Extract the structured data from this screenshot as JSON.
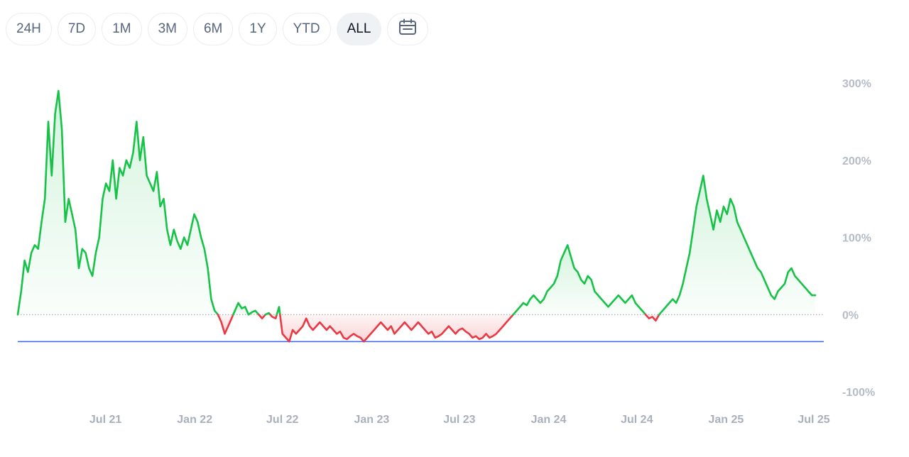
{
  "range_selector": {
    "options": [
      "24H",
      "7D",
      "1M",
      "3M",
      "6M",
      "1Y",
      "YTD",
      "ALL"
    ],
    "active": "ALL",
    "calendar_icon": "calendar-icon"
  },
  "colors": {
    "positive": "#16c247",
    "negative": "#ea3943",
    "positive_fill": "#16c247",
    "negative_fill": "#ea3943",
    "baseline": "#9aa0a8",
    "reference_line": "#3861fb",
    "tick_text": "#b6bcc7"
  },
  "chart_data": {
    "type": "area",
    "title": "",
    "xlabel": "",
    "ylabel": "",
    "y_unit": "%",
    "ylim": [
      -100,
      300
    ],
    "y_ticks": [
      300,
      200,
      100,
      0,
      -100
    ],
    "y_tick_labels": [
      "300%",
      "200%",
      "100%",
      "0%",
      "-100%"
    ],
    "y_axis_side": "right",
    "x_ticks": [
      "2021-07-01",
      "2022-01-01",
      "2022-07-01",
      "2023-01-01",
      "2023-07-01",
      "2024-01-01",
      "2024-07-01",
      "2025-01-01",
      "2025-07-01"
    ],
    "x_tick_labels": [
      "Jul 21",
      "Jan 22",
      "Jul 22",
      "Jan 23",
      "Jul 23",
      "Jan 24",
      "Jul 24",
      "Jan 25",
      "Jul 25"
    ],
    "baseline": 0,
    "reference_line_value": -35,
    "grid": false,
    "legend": "none",
    "series": [
      {
        "points": [
          [
            "2021-01-01",
            0
          ],
          [
            "2021-01-08",
            30
          ],
          [
            "2021-01-15",
            70
          ],
          [
            "2021-01-22",
            55
          ],
          [
            "2021-01-29",
            80
          ],
          [
            "2021-02-05",
            90
          ],
          [
            "2021-02-12",
            85
          ],
          [
            "2021-02-19",
            120
          ],
          [
            "2021-02-26",
            150
          ],
          [
            "2021-03-05",
            250
          ],
          [
            "2021-03-12",
            180
          ],
          [
            "2021-03-19",
            260
          ],
          [
            "2021-03-26",
            290
          ],
          [
            "2021-04-02",
            240
          ],
          [
            "2021-04-09",
            120
          ],
          [
            "2021-04-16",
            150
          ],
          [
            "2021-04-23",
            130
          ],
          [
            "2021-04-30",
            110
          ],
          [
            "2021-05-07",
            60
          ],
          [
            "2021-05-14",
            85
          ],
          [
            "2021-05-21",
            80
          ],
          [
            "2021-05-28",
            60
          ],
          [
            "2021-06-04",
            50
          ],
          [
            "2021-06-11",
            80
          ],
          [
            "2021-06-18",
            100
          ],
          [
            "2021-06-25",
            150
          ],
          [
            "2021-07-02",
            170
          ],
          [
            "2021-07-09",
            160
          ],
          [
            "2021-07-16",
            200
          ],
          [
            "2021-07-23",
            150
          ],
          [
            "2021-07-30",
            190
          ],
          [
            "2021-08-06",
            180
          ],
          [
            "2021-08-13",
            200
          ],
          [
            "2021-08-20",
            190
          ],
          [
            "2021-08-27",
            210
          ],
          [
            "2021-09-03",
            250
          ],
          [
            "2021-09-10",
            200
          ],
          [
            "2021-09-17",
            230
          ],
          [
            "2021-09-24",
            180
          ],
          [
            "2021-10-01",
            170
          ],
          [
            "2021-10-08",
            160
          ],
          [
            "2021-10-15",
            185
          ],
          [
            "2021-10-22",
            140
          ],
          [
            "2021-10-29",
            150
          ],
          [
            "2021-11-05",
            110
          ],
          [
            "2021-11-12",
            90
          ],
          [
            "2021-11-19",
            110
          ],
          [
            "2021-11-26",
            95
          ],
          [
            "2021-12-03",
            85
          ],
          [
            "2021-12-10",
            100
          ],
          [
            "2021-12-17",
            90
          ],
          [
            "2021-12-24",
            110
          ],
          [
            "2021-12-31",
            130
          ],
          [
            "2022-01-07",
            120
          ],
          [
            "2022-01-14",
            100
          ],
          [
            "2022-01-21",
            85
          ],
          [
            "2022-01-28",
            60
          ],
          [
            "2022-02-04",
            20
          ],
          [
            "2022-02-11",
            5
          ],
          [
            "2022-02-18",
            0
          ],
          [
            "2022-02-25",
            -10
          ],
          [
            "2022-03-04",
            -25
          ],
          [
            "2022-03-11",
            -15
          ],
          [
            "2022-03-18",
            -5
          ],
          [
            "2022-03-25",
            5
          ],
          [
            "2022-04-01",
            15
          ],
          [
            "2022-04-08",
            8
          ],
          [
            "2022-04-15",
            10
          ],
          [
            "2022-04-22",
            0
          ],
          [
            "2022-04-29",
            3
          ],
          [
            "2022-05-06",
            5
          ],
          [
            "2022-05-13",
            0
          ],
          [
            "2022-05-20",
            -5
          ],
          [
            "2022-05-27",
            0
          ],
          [
            "2022-06-03",
            2
          ],
          [
            "2022-06-10",
            -3
          ],
          [
            "2022-06-17",
            -5
          ],
          [
            "2022-06-24",
            10
          ],
          [
            "2022-07-01",
            -25
          ],
          [
            "2022-07-08",
            -30
          ],
          [
            "2022-07-15",
            -35
          ],
          [
            "2022-07-22",
            -20
          ],
          [
            "2022-07-29",
            -25
          ],
          [
            "2022-08-05",
            -20
          ],
          [
            "2022-08-12",
            -15
          ],
          [
            "2022-08-19",
            -5
          ],
          [
            "2022-08-26",
            -15
          ],
          [
            "2022-09-02",
            -20
          ],
          [
            "2022-09-09",
            -15
          ],
          [
            "2022-09-16",
            -10
          ],
          [
            "2022-09-23",
            -15
          ],
          [
            "2022-09-30",
            -20
          ],
          [
            "2022-10-07",
            -15
          ],
          [
            "2022-10-14",
            -20
          ],
          [
            "2022-10-21",
            -25
          ],
          [
            "2022-10-28",
            -22
          ],
          [
            "2022-11-04",
            -30
          ],
          [
            "2022-11-11",
            -32
          ],
          [
            "2022-11-18",
            -28
          ],
          [
            "2022-11-25",
            -25
          ],
          [
            "2022-12-02",
            -28
          ],
          [
            "2022-12-09",
            -30
          ],
          [
            "2022-12-16",
            -35
          ],
          [
            "2022-12-23",
            -30
          ],
          [
            "2022-12-30",
            -25
          ],
          [
            "2023-01-06",
            -20
          ],
          [
            "2023-01-13",
            -15
          ],
          [
            "2023-01-20",
            -10
          ],
          [
            "2023-01-27",
            -15
          ],
          [
            "2023-02-03",
            -20
          ],
          [
            "2023-02-10",
            -15
          ],
          [
            "2023-02-17",
            -25
          ],
          [
            "2023-02-24",
            -20
          ],
          [
            "2023-03-03",
            -15
          ],
          [
            "2023-03-10",
            -10
          ],
          [
            "2023-03-17",
            -15
          ],
          [
            "2023-03-24",
            -20
          ],
          [
            "2023-03-31",
            -15
          ],
          [
            "2023-04-07",
            -10
          ],
          [
            "2023-04-14",
            -15
          ],
          [
            "2023-04-21",
            -20
          ],
          [
            "2023-04-28",
            -25
          ],
          [
            "2023-05-05",
            -22
          ],
          [
            "2023-05-12",
            -30
          ],
          [
            "2023-05-19",
            -28
          ],
          [
            "2023-05-26",
            -25
          ],
          [
            "2023-06-02",
            -20
          ],
          [
            "2023-06-09",
            -15
          ],
          [
            "2023-06-16",
            -20
          ],
          [
            "2023-06-23",
            -25
          ],
          [
            "2023-06-30",
            -20
          ],
          [
            "2023-07-07",
            -18
          ],
          [
            "2023-07-14",
            -22
          ],
          [
            "2023-07-21",
            -25
          ],
          [
            "2023-07-28",
            -30
          ],
          [
            "2023-08-04",
            -28
          ],
          [
            "2023-08-11",
            -32
          ],
          [
            "2023-08-18",
            -30
          ],
          [
            "2023-08-25",
            -25
          ],
          [
            "2023-09-01",
            -30
          ],
          [
            "2023-09-08",
            -28
          ],
          [
            "2023-09-15",
            -25
          ],
          [
            "2023-09-22",
            -20
          ],
          [
            "2023-09-29",
            -15
          ],
          [
            "2023-10-06",
            -10
          ],
          [
            "2023-10-13",
            -5
          ],
          [
            "2023-10-20",
            0
          ],
          [
            "2023-10-27",
            5
          ],
          [
            "2023-11-03",
            10
          ],
          [
            "2023-11-10",
            15
          ],
          [
            "2023-11-17",
            12
          ],
          [
            "2023-11-24",
            20
          ],
          [
            "2023-12-01",
            25
          ],
          [
            "2023-12-08",
            20
          ],
          [
            "2023-12-15",
            15
          ],
          [
            "2023-12-22",
            20
          ],
          [
            "2023-12-29",
            30
          ],
          [
            "2024-01-05",
            35
          ],
          [
            "2024-01-12",
            40
          ],
          [
            "2024-01-19",
            50
          ],
          [
            "2024-01-26",
            70
          ],
          [
            "2024-02-02",
            80
          ],
          [
            "2024-02-09",
            90
          ],
          [
            "2024-02-16",
            75
          ],
          [
            "2024-02-23",
            60
          ],
          [
            "2024-03-01",
            55
          ],
          [
            "2024-03-08",
            45
          ],
          [
            "2024-03-15",
            40
          ],
          [
            "2024-03-22",
            50
          ],
          [
            "2024-03-29",
            45
          ],
          [
            "2024-04-05",
            30
          ],
          [
            "2024-04-12",
            25
          ],
          [
            "2024-04-19",
            20
          ],
          [
            "2024-04-26",
            15
          ],
          [
            "2024-05-03",
            10
          ],
          [
            "2024-05-10",
            15
          ],
          [
            "2024-05-17",
            20
          ],
          [
            "2024-05-24",
            25
          ],
          [
            "2024-05-31",
            20
          ],
          [
            "2024-06-07",
            15
          ],
          [
            "2024-06-14",
            20
          ],
          [
            "2024-06-21",
            25
          ],
          [
            "2024-06-28",
            15
          ],
          [
            "2024-07-05",
            10
          ],
          [
            "2024-07-12",
            5
          ],
          [
            "2024-07-19",
            0
          ],
          [
            "2024-07-26",
            -5
          ],
          [
            "2024-08-02",
            -3
          ],
          [
            "2024-08-09",
            -8
          ],
          [
            "2024-08-16",
            0
          ],
          [
            "2024-08-23",
            5
          ],
          [
            "2024-08-30",
            10
          ],
          [
            "2024-09-06",
            15
          ],
          [
            "2024-09-13",
            20
          ],
          [
            "2024-09-20",
            15
          ],
          [
            "2024-09-27",
            25
          ],
          [
            "2024-10-04",
            40
          ],
          [
            "2024-10-11",
            60
          ],
          [
            "2024-10-18",
            80
          ],
          [
            "2024-10-25",
            110
          ],
          [
            "2024-11-01",
            140
          ],
          [
            "2024-11-08",
            160
          ],
          [
            "2024-11-15",
            180
          ],
          [
            "2024-11-22",
            150
          ],
          [
            "2024-11-29",
            130
          ],
          [
            "2024-12-06",
            110
          ],
          [
            "2024-12-13",
            135
          ],
          [
            "2024-12-20",
            120
          ],
          [
            "2024-12-27",
            140
          ],
          [
            "2025-01-03",
            130
          ],
          [
            "2025-01-10",
            150
          ],
          [
            "2025-01-17",
            140
          ],
          [
            "2025-01-24",
            120
          ],
          [
            "2025-01-31",
            110
          ],
          [
            "2025-02-07",
            100
          ],
          [
            "2025-02-14",
            90
          ],
          [
            "2025-02-21",
            80
          ],
          [
            "2025-02-28",
            70
          ],
          [
            "2025-03-07",
            60
          ],
          [
            "2025-03-14",
            55
          ],
          [
            "2025-03-21",
            45
          ],
          [
            "2025-03-28",
            35
          ],
          [
            "2025-04-04",
            25
          ],
          [
            "2025-04-11",
            20
          ],
          [
            "2025-04-18",
            30
          ],
          [
            "2025-04-25",
            35
          ],
          [
            "2025-05-02",
            40
          ],
          [
            "2025-05-09",
            55
          ],
          [
            "2025-05-16",
            60
          ],
          [
            "2025-05-23",
            50
          ],
          [
            "2025-05-30",
            45
          ],
          [
            "2025-06-06",
            40
          ],
          [
            "2025-06-13",
            35
          ],
          [
            "2025-06-20",
            30
          ],
          [
            "2025-06-27",
            25
          ],
          [
            "2025-07-04",
            25
          ]
        ]
      }
    ]
  }
}
